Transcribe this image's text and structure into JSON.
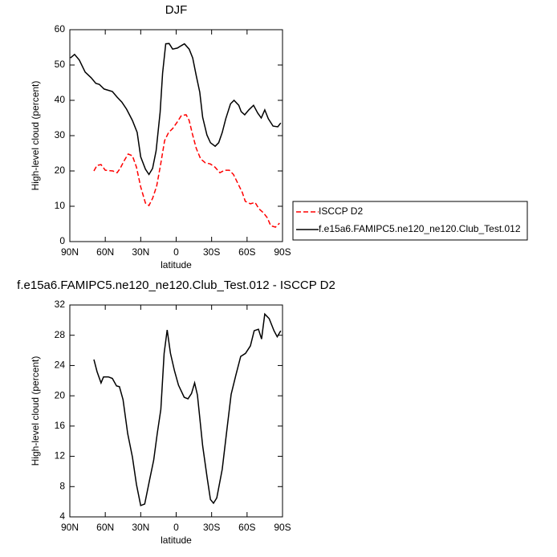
{
  "chart_data": [
    {
      "type": "line",
      "title": "DJF",
      "xlabel": "latitude",
      "ylabel": "High-level cloud (percent)",
      "xlim": [
        90,
        -90
      ],
      "xticks": [
        {
          "value": 90,
          "label": "90N"
        },
        {
          "value": 60,
          "label": "60N"
        },
        {
          "value": 30,
          "label": "30N"
        },
        0,
        {
          "value": -30,
          "label": "30S"
        },
        {
          "value": -60,
          "label": "60S"
        },
        {
          "value": -90,
          "label": "90S"
        }
      ],
      "ylim": [
        0,
        60
      ],
      "yticks": [
        0,
        10,
        20,
        30,
        40,
        50,
        60
      ],
      "legend": "right",
      "series": [
        {
          "name": "ISCCP D2",
          "color": "#ff0000",
          "linestyle": "dashed",
          "x": [
            69.6,
            67,
            63.6,
            60,
            53.6,
            50,
            47.4,
            44,
            40.6,
            37,
            33.6,
            30,
            26,
            23,
            19.9,
            16.5,
            13.2,
            9.8,
            6.4,
            3,
            -1,
            -4.4,
            -8.4,
            -11,
            -13.7,
            -17,
            -20.7,
            -24.7,
            -28.8,
            -32.8,
            -37,
            -41,
            -45,
            -48.5,
            -52,
            -56,
            -58.5,
            -62.8,
            -66.8,
            -70,
            -73.7,
            -77,
            -80,
            -84,
            -87.5
          ],
          "values": [
            20,
            21.6,
            21.8,
            20.2,
            20,
            19.5,
            20.7,
            22.9,
            24.8,
            24.3,
            21.1,
            15.5,
            10.9,
            10.2,
            12.3,
            15.7,
            21.8,
            28.6,
            30.9,
            32,
            33.9,
            35.7,
            35.9,
            34.3,
            30.5,
            26.4,
            23.4,
            22.3,
            22,
            21.1,
            19.5,
            20.2,
            20.2,
            19,
            16.6,
            13.9,
            11.4,
            10.7,
            11.1,
            9.3,
            8.2,
            6.8,
            4.5,
            4.1,
            5.2
          ]
        },
        {
          "name": "f.e15a6.FAMIPC5.ne120_ne120.Club_Test.012",
          "color": "#000000",
          "linestyle": "solid",
          "x": [
            89.5,
            86,
            82,
            77,
            72,
            68,
            65,
            61,
            54,
            50,
            46,
            42,
            37,
            33,
            30,
            26,
            23,
            20,
            17,
            13.6,
            11.5,
            8.8,
            6,
            3,
            -1,
            -4.4,
            -7,
            -11,
            -14,
            -17,
            -20,
            -22.4,
            -26,
            -29,
            -33,
            -36,
            -39,
            -42,
            -46,
            -49,
            -53,
            -55,
            -58,
            -61.5,
            -65.5,
            -69,
            -72,
            -75,
            -78,
            -82,
            -86,
            -88.5
          ],
          "values": [
            52,
            53,
            51.4,
            48,
            46.4,
            44.8,
            44.5,
            43.2,
            42.5,
            40.9,
            39.5,
            37.5,
            34.3,
            30.9,
            24,
            20.5,
            19,
            20.7,
            25.7,
            36.6,
            47.7,
            56,
            56.1,
            54.5,
            54.8,
            55.5,
            56,
            54.5,
            52,
            47,
            42.3,
            35.2,
            30.2,
            28,
            27,
            28,
            30.9,
            34.8,
            39,
            40,
            38.6,
            36.8,
            35.9,
            37.3,
            38.6,
            36.4,
            35,
            37.3,
            34.8,
            32.7,
            32.5,
            33.6
          ]
        }
      ]
    },
    {
      "type": "line",
      "title": "f.e15a6.FAMIPC5.ne120_ne120.Club_Test.012 - ISCCP D2",
      "xlabel": "latitude",
      "ylabel": "High-level cloud (percent)",
      "xlim": [
        90,
        -90
      ],
      "xticks": [
        {
          "value": 90,
          "label": "90N"
        },
        {
          "value": 60,
          "label": "60N"
        },
        {
          "value": 30,
          "label": "30N"
        },
        0,
        {
          "value": -30,
          "label": "30S"
        },
        {
          "value": -60,
          "label": "60S"
        },
        {
          "value": -90,
          "label": "90S"
        }
      ],
      "ylim": [
        4,
        32
      ],
      "yticks": [
        4,
        8,
        12,
        16,
        20,
        24,
        28,
        32
      ],
      "series": [
        {
          "color": "#000000",
          "linestyle": "solid",
          "x": [
            69.6,
            67,
            63.6,
            61.5,
            57.4,
            54,
            50.5,
            48,
            45,
            41,
            37,
            33.6,
            30,
            26.6,
            22.5,
            19,
            16,
            13,
            10.2,
            7.6,
            4.8,
            1.4,
            -2,
            -6.8,
            -10,
            -13,
            -15.6,
            -18,
            -22.4,
            -26.3,
            -29,
            -31.6,
            -34.4,
            -39,
            -43,
            -46.5,
            -50.5,
            -54.6,
            -58.7,
            -62.8,
            -66,
            -69.6,
            -72.3,
            -75,
            -78.7,
            -82.8,
            -85.5,
            -88.5
          ],
          "values": [
            24.8,
            23.2,
            21.7,
            22.5,
            22.5,
            22.3,
            21.3,
            21.2,
            19.5,
            15,
            11.9,
            8.3,
            5.5,
            5.7,
            8.9,
            11.5,
            15,
            18.2,
            25.6,
            28.7,
            25.6,
            23.3,
            21.4,
            19.8,
            19.6,
            20.3,
            21.7,
            20.1,
            13.4,
            9.1,
            6.3,
            5.8,
            6.5,
            10.3,
            15.6,
            20.2,
            22.7,
            25.2,
            25.6,
            26.6,
            28.6,
            28.8,
            27.5,
            30.8,
            30.2,
            28.6,
            27.8,
            28.6
          ]
        }
      ]
    }
  ]
}
